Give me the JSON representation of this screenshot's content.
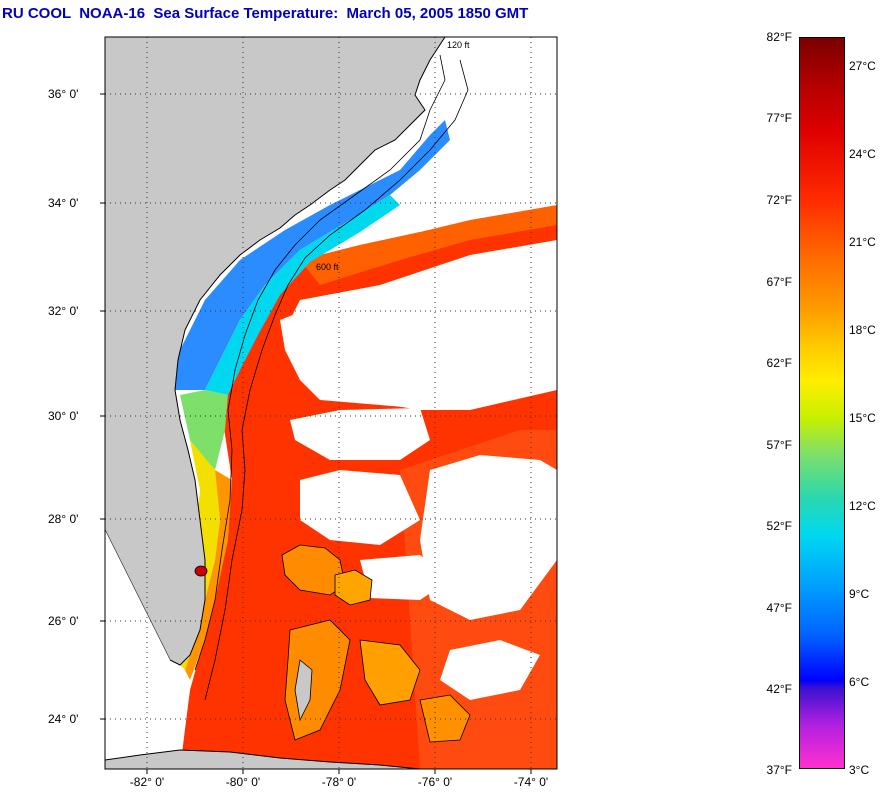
{
  "title": "RU COOL  NOAA-16  Sea Surface Temperature:  March 05, 2005 1850 GMT",
  "map": {
    "lat_labels": [
      "36° 0'",
      "34° 0'",
      "32° 0'",
      "30° 0'",
      "28° 0'",
      "26° 0'",
      "24° 0'"
    ],
    "lon_labels": [
      "-82° 0'",
      "-80° 0'",
      "-78° 0'",
      "-76° 0'",
      "-74° 0'"
    ],
    "depth_labels": [
      "120 ft",
      "600 ft"
    ],
    "colors": {
      "land": "#c8c8c8",
      "cloud": "#ffffff",
      "gulf_stream": "#ff2a00",
      "shelf_cold": "#1e90ff"
    }
  },
  "colorbar": {
    "fahrenheit_labels": [
      "82°F",
      "77°F",
      "72°F",
      "67°F",
      "62°F",
      "57°F",
      "52°F",
      "47°F",
      "42°F",
      "37°F"
    ],
    "celsius_labels": [
      "27°C",
      "24°C",
      "21°C",
      "18°C",
      "15°C",
      "12°C",
      "9°C",
      "6°C",
      "3°C"
    ]
  }
}
